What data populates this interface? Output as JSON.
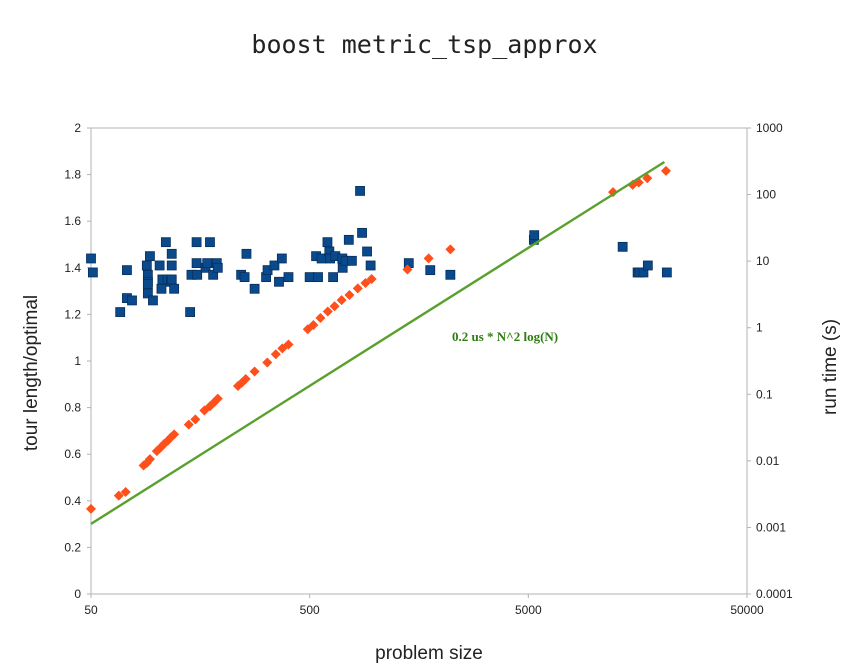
{
  "chart_data": {
    "type": "scatter",
    "title": "boost metric_tsp_approx",
    "xlabel": "problem size",
    "ylabel": "tour length/optimal",
    "y2label": "run time (s)",
    "x_scale": "log",
    "xlim": [
      50,
      50000
    ],
    "x_ticks": [
      "50",
      "500",
      "5000",
      "50000"
    ],
    "ylim": [
      0,
      2
    ],
    "y_ticks": [
      "0",
      "0.2",
      "0.4",
      "0.6",
      "0.8",
      "1",
      "1.2",
      "1.4",
      "1.6",
      "1.8",
      "2"
    ],
    "y2_scale": "log",
    "y2lim": [
      0.0001,
      1000
    ],
    "y2_ticks": [
      "0.0001",
      "0.001",
      "0.01",
      "0.1",
      "1",
      "10",
      "100",
      "1000"
    ],
    "grid": false,
    "annotation": "0.2 us * N^2 log(N)",
    "colors": {
      "ratio": "#0a4a8c",
      "runtime": "#ff4f1a",
      "fit": "#5aa02c"
    },
    "series": [
      {
        "key": "ratio",
        "axis": "left",
        "marker": "square",
        "points": [
          [
            50,
            1.44
          ],
          [
            51,
            1.38
          ],
          [
            68,
            1.21
          ],
          [
            73,
            1.39
          ],
          [
            73,
            1.27
          ],
          [
            77,
            1.26
          ],
          [
            90,
            1.41
          ],
          [
            91,
            1.37
          ],
          [
            91,
            1.34
          ],
          [
            91,
            1.33
          ],
          [
            91,
            1.29
          ],
          [
            93,
            1.45
          ],
          [
            96,
            1.26
          ],
          [
            103,
            1.41
          ],
          [
            105,
            1.31
          ],
          [
            106,
            1.35
          ],
          [
            110,
            1.51
          ],
          [
            112,
            1.35
          ],
          [
            116,
            1.34
          ],
          [
            117,
            1.46
          ],
          [
            117,
            1.41
          ],
          [
            117,
            1.35
          ],
          [
            120,
            1.31
          ],
          [
            142,
            1.21
          ],
          [
            144,
            1.37
          ],
          [
            152,
            1.51
          ],
          [
            153,
            1.37
          ],
          [
            152,
            1.42
          ],
          [
            167,
            1.4
          ],
          [
            170,
            1.42
          ],
          [
            175,
            1.51
          ],
          [
            181,
            1.37
          ],
          [
            188,
            1.42
          ],
          [
            190,
            1.4
          ],
          [
            243,
            1.37
          ],
          [
            252,
            1.36
          ],
          [
            257,
            1.46
          ],
          [
            280,
            1.31
          ],
          [
            316,
            1.36
          ],
          [
            321,
            1.39
          ],
          [
            345,
            1.41
          ],
          [
            362,
            1.34
          ],
          [
            373,
            1.44
          ],
          [
            400,
            1.36
          ],
          [
            500,
            1.36
          ],
          [
            535,
            1.45
          ],
          [
            546,
            1.36
          ],
          [
            567,
            1.44
          ],
          [
            603,
            1.51
          ],
          [
            615,
            1.47
          ],
          [
            620,
            1.44
          ],
          [
            640,
            1.36
          ],
          [
            655,
            1.45
          ],
          [
            705,
            1.44
          ],
          [
            708,
            1.4
          ],
          [
            730,
            1.43
          ],
          [
            755,
            1.52
          ],
          [
            780,
            1.43
          ],
          [
            850,
            1.73
          ],
          [
            868,
            1.55
          ],
          [
            915,
            1.47
          ],
          [
            950,
            1.41
          ],
          [
            1420,
            1.42
          ],
          [
            1780,
            1.39
          ],
          [
            2200,
            1.37
          ],
          [
            5300,
            1.52
          ],
          [
            5320,
            1.54
          ],
          [
            13500,
            1.49
          ],
          [
            15800,
            1.38
          ],
          [
            16100,
            1.38
          ],
          [
            16800,
            1.38
          ],
          [
            17600,
            1.41
          ],
          [
            21500,
            1.38
          ]
        ]
      },
      {
        "key": "runtime",
        "axis": "right",
        "marker": "diamond",
        "points": [
          [
            50,
            0.0019
          ],
          [
            67,
            0.003
          ],
          [
            72,
            0.0034
          ],
          [
            87,
            0.0085
          ],
          [
            90,
            0.0093
          ],
          [
            93,
            0.0106
          ],
          [
            100,
            0.014
          ],
          [
            104,
            0.0158
          ],
          [
            108,
            0.018
          ],
          [
            112,
            0.02
          ],
          [
            116,
            0.0225
          ],
          [
            120,
            0.025
          ],
          [
            140,
            0.035
          ],
          [
            150,
            0.042
          ],
          [
            165,
            0.057
          ],
          [
            175,
            0.066
          ],
          [
            183,
            0.076
          ],
          [
            190,
            0.086
          ],
          [
            235,
            0.133
          ],
          [
            245,
            0.15
          ],
          [
            255,
            0.17
          ],
          [
            280,
            0.22
          ],
          [
            320,
            0.3
          ],
          [
            350,
            0.4
          ],
          [
            375,
            0.49
          ],
          [
            400,
            0.56
          ],
          [
            490,
            0.95
          ],
          [
            520,
            1.1
          ],
          [
            560,
            1.4
          ],
          [
            605,
            1.75
          ],
          [
            650,
            2.1
          ],
          [
            700,
            2.6
          ],
          [
            760,
            3.1
          ],
          [
            830,
            3.9
          ],
          [
            900,
            4.7
          ],
          [
            960,
            5.4
          ],
          [
            1400,
            7.5
          ],
          [
            1750,
            11.0
          ],
          [
            2200,
            15.0
          ],
          [
            12200,
            109
          ],
          [
            15000,
            140
          ],
          [
            16000,
            152
          ],
          [
            17500,
            176
          ],
          [
            21300,
            227
          ]
        ]
      },
      {
        "key": "fit",
        "axis": "right",
        "marker": "line",
        "points": [
          [
            50,
            0.00113
          ],
          [
            20950,
            309
          ]
        ]
      }
    ]
  }
}
